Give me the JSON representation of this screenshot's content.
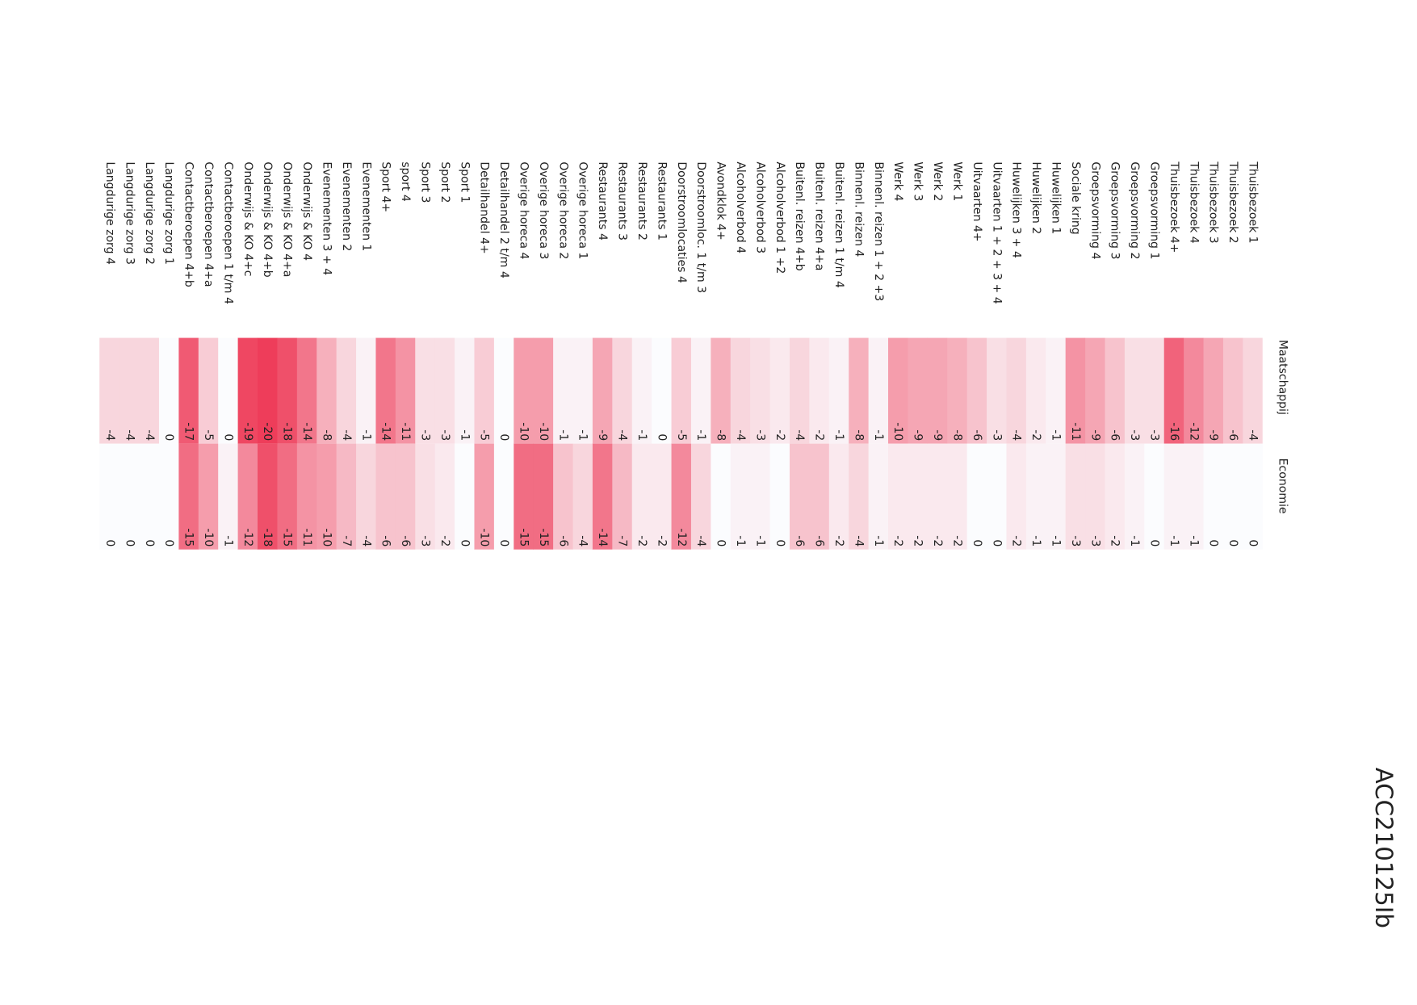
{
  "chart_data": {
    "type": "heatmap",
    "columns": [
      "Maatschappij",
      "Economie"
    ],
    "rows": [
      "Thuisbezoek 1",
      "Thuisbezoek 2",
      "Thuisbezoek 3",
      "Thuisbezoek 4",
      "Thuisbezoek 4+",
      "Groepsvorming 1",
      "Groepsvorming 2",
      "Groepsvorming 3",
      "Groepsvorming 4",
      "Sociale kring",
      "Huwelijken 1",
      "Huwelijken 2",
      "Huwelijken 3 + 4",
      "Uitvaarten 1 + 2 + 3 + 4",
      "Uitvaarten 4+",
      "Werk 1",
      "Werk 2",
      "Werk 3",
      "Werk 4",
      "Binnenl. reizen 1 + 2 +3",
      "Binnenl. reizen 4",
      "Buitenl. reizen 1 t/m 4",
      "Buitenl. reizen 4+a",
      "Buitenl. reizen 4+b",
      "Alcoholverbod 1 +2",
      "Alcoholverbod 3",
      "Alcoholverbod 4",
      "Avondklok 4+",
      "Doorstroomloc. 1 t/m 3",
      "Doorstroomlocaties 4",
      "Restaurants 1",
      "Restaurants 2",
      "Restaurants 3",
      "Restaurants 4",
      "Overige horeca 1",
      "Overige horeca 2",
      "Overige horeca 3",
      "Overige horeca 4",
      "Detailhandel 2 t/m 4",
      "Detailhandel 4+",
      "Sport 1",
      "Sport 2",
      "Sport 3",
      "sport 4",
      "Sport 4+",
      "Evenementen 1",
      "Evenementen 2",
      "Evenementen 3 + 4",
      "Onderwijs & KO 4",
      "Onderwijs & KO 4+a",
      "Onderwijs & KO 4+b",
      "Onderwijs & KO 4+c",
      "Contactberoepen 1 t/m 4",
      "Contactberoepen 4+a",
      "Contactberoepen 4+b",
      "Langdurige zorg 1",
      "Langdurige zorg 2",
      "Langdurige zorg 3",
      "Langdurige zorg 4"
    ],
    "values": [
      [
        -4,
        0
      ],
      [
        -6,
        0
      ],
      [
        -9,
        0
      ],
      [
        -12,
        -1
      ],
      [
        -16,
        -1
      ],
      [
        -3,
        0
      ],
      [
        -3,
        -1
      ],
      [
        -6,
        -2
      ],
      [
        -9,
        -3
      ],
      [
        -11,
        -3
      ],
      [
        -1,
        -1
      ],
      [
        -2,
        -1
      ],
      [
        -4,
        -2
      ],
      [
        -3,
        0
      ],
      [
        -6,
        0
      ],
      [
        -8,
        -2
      ],
      [
        -9,
        -2
      ],
      [
        -9,
        -2
      ],
      [
        -10,
        -2
      ],
      [
        -1,
        -1
      ],
      [
        -8,
        -4
      ],
      [
        -1,
        -2
      ],
      [
        -2,
        -6
      ],
      [
        -4,
        -6
      ],
      [
        -2,
        0
      ],
      [
        -3,
        -1
      ],
      [
        -4,
        -1
      ],
      [
        -8,
        0
      ],
      [
        -1,
        -4
      ],
      [
        -5,
        -12
      ],
      [
        0,
        -2
      ],
      [
        -1,
        -2
      ],
      [
        -4,
        -7
      ],
      [
        -9,
        -14
      ],
      [
        -1,
        -4
      ],
      [
        -1,
        -6
      ],
      [
        -10,
        -15
      ],
      [
        -10,
        -15
      ],
      [
        0,
        0
      ],
      [
        -5,
        -10
      ],
      [
        -1,
        0
      ],
      [
        -3,
        -2
      ],
      [
        -3,
        -3
      ],
      [
        -11,
        -6
      ],
      [
        -14,
        -6
      ],
      [
        -1,
        -4
      ],
      [
        -4,
        -7
      ],
      [
        -8,
        -10
      ],
      [
        -14,
        -11
      ],
      [
        -18,
        -15
      ],
      [
        -20,
        -18
      ],
      [
        -19,
        -12
      ],
      [
        0,
        -1
      ],
      [
        -5,
        -10
      ],
      [
        -17,
        -15
      ],
      [
        0,
        0
      ],
      [
        -4,
        0
      ],
      [
        -4,
        0
      ],
      [
        -4,
        0
      ]
    ],
    "vlim": [
      -20,
      0
    ],
    "colors": {
      "low": "#ee3d5a",
      "high": "#fbfcfe"
    },
    "code": "ACC210125Ib"
  }
}
